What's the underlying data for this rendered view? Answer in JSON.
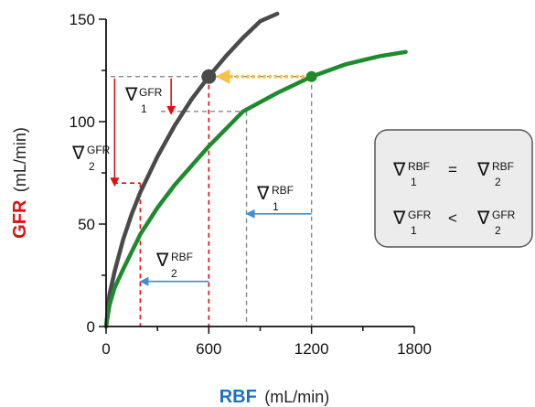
{
  "chart_data": {
    "type": "line",
    "xlabel": "RBF",
    "xlabel_unit": "(mL/min)",
    "ylabel": "GFR",
    "ylabel_unit": "(mL/min)",
    "xlim": [
      0,
      1800
    ],
    "ylim": [
      0,
      150
    ],
    "x_ticks": [
      0,
      600,
      1200,
      1800
    ],
    "x_tick_labels": [
      "0",
      "600",
      "1200",
      "1800"
    ],
    "y_ticks": [
      0,
      50,
      100,
      150
    ],
    "y_tick_labels": [
      "0",
      "50",
      "100",
      "150"
    ],
    "grid": false,
    "colors": {
      "upper_curve": "#4a4a4a",
      "lower_curve": "#1e8a2e",
      "gfr_arrow": "#dd1111",
      "rbf_arrow": "#3a8fd6",
      "shift_arrow": "#f5c24a",
      "guide_line": "#888888",
      "ylabel": "#dd1111",
      "xlabel": "#1f6fc0"
    },
    "series": [
      {
        "x": [
          0,
          20,
          50,
          100,
          150,
          200,
          300,
          400,
          500,
          600,
          700,
          800,
          900,
          1000
        ],
        "y": [
          0,
          15.5,
          27,
          42.5,
          55,
          65.5,
          83,
          98,
          111,
          122,
          132,
          141,
          149,
          156
        ]
      },
      {
        "x": [
          0,
          20,
          50,
          100,
          200,
          300,
          400,
          600,
          800,
          1000,
          1200,
          1400,
          1600,
          1750
        ],
        "y": [
          0,
          10.5,
          19,
          28,
          45,
          58,
          69,
          88,
          105,
          114,
          122,
          128,
          132,
          134
        ]
      }
    ],
    "points": [
      {
        "x": 600,
        "y": 122,
        "color": "#4a4a4a"
      },
      {
        "x": 1200,
        "y": 122,
        "color": "#1e8a2e"
      }
    ],
    "reference_lines": {
      "gfr_levels": [
        122,
        105,
        70
      ],
      "rbf_levels": [
        200,
        600,
        820,
        1200
      ]
    },
    "annotations": {
      "nabla": "∇",
      "gfr": "GFR",
      "rbf": "RBF",
      "sub1": "1",
      "sub2": "2"
    },
    "legend_box": {
      "row1": {
        "left_sup": "RBF",
        "left_sub": "1",
        "op": "=",
        "right_sup": "RBF",
        "right_sub": "2"
      },
      "row2": {
        "left_sup": "GFR",
        "left_sub": "1",
        "op": "<",
        "right_sup": "GFR",
        "right_sub": "2"
      }
    }
  }
}
